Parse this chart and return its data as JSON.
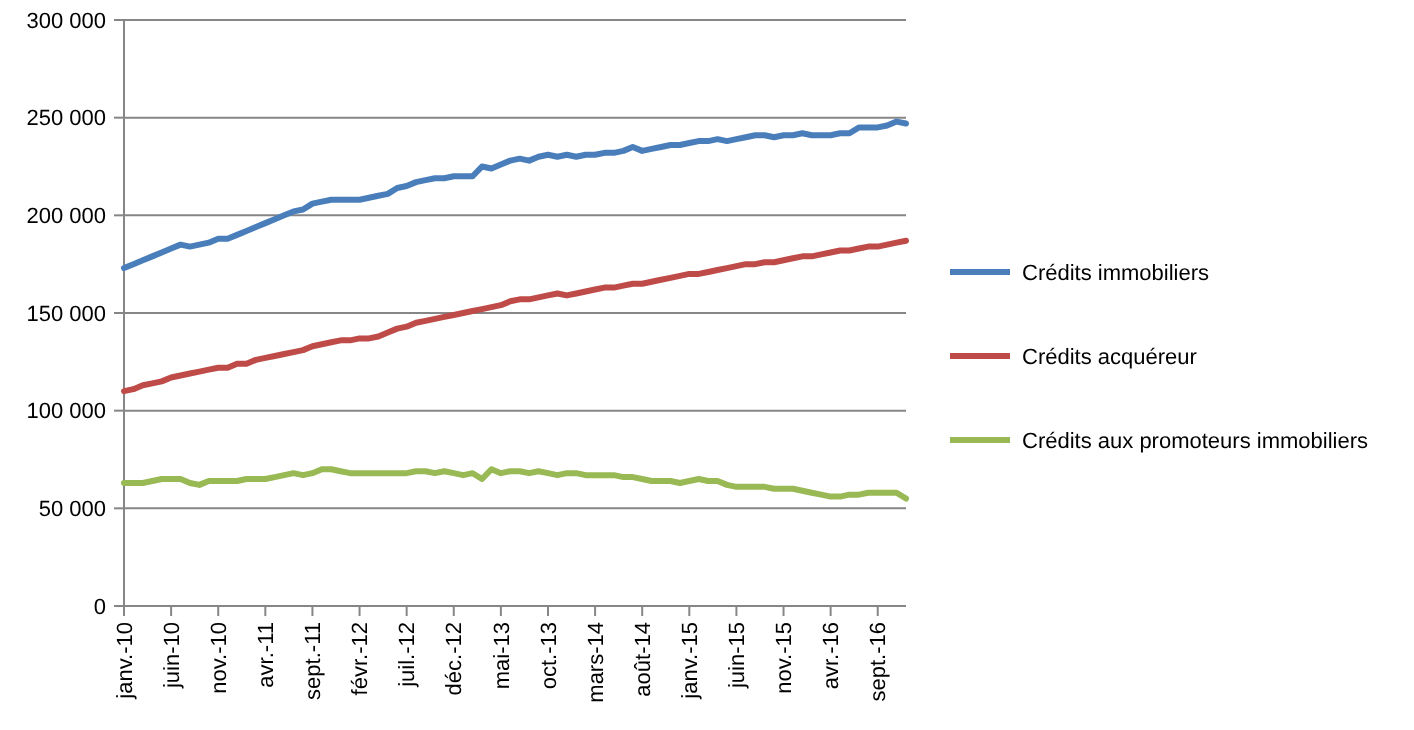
{
  "chart_data": {
    "type": "line",
    "categories": [
      "janv.-10",
      null,
      null,
      null,
      null,
      "juin-10",
      null,
      null,
      null,
      null,
      "nov.-10",
      null,
      null,
      null,
      null,
      "avr.-11",
      null,
      null,
      null,
      null,
      "sept.-11",
      null,
      null,
      null,
      null,
      "févr.-12",
      null,
      null,
      null,
      null,
      "juil.-12",
      null,
      null,
      null,
      null,
      "déc.-12",
      null,
      null,
      null,
      null,
      "mai-13",
      null,
      null,
      null,
      null,
      "oct.-13",
      null,
      null,
      null,
      null,
      "mars-14",
      null,
      null,
      null,
      null,
      "août-14",
      null,
      null,
      null,
      null,
      "janv.-15",
      null,
      null,
      null,
      null,
      "juin-15",
      null,
      null,
      null,
      null,
      "nov.-15",
      null,
      null,
      null,
      null,
      "avr.-16",
      null,
      null,
      null,
      null,
      "sept.-16",
      null,
      null,
      null
    ],
    "series": [
      {
        "name": "Crédits immobiliers",
        "color": "#4a7ebb",
        "values": [
          173000,
          175000,
          177000,
          179000,
          181000,
          183000,
          185000,
          184000,
          185000,
          186000,
          188000,
          188000,
          190000,
          192000,
          194000,
          196000,
          198000,
          200000,
          202000,
          203000,
          206000,
          207000,
          208000,
          208000,
          208000,
          208000,
          209000,
          210000,
          211000,
          214000,
          215000,
          217000,
          218000,
          219000,
          219000,
          220000,
          220000,
          220000,
          225000,
          224000,
          226000,
          228000,
          229000,
          228000,
          230000,
          231000,
          230000,
          231000,
          230000,
          231000,
          231000,
          232000,
          232000,
          233000,
          235000,
          233000,
          234000,
          235000,
          236000,
          236000,
          237000,
          238000,
          238000,
          239000,
          238000,
          239000,
          240000,
          241000,
          241000,
          240000,
          241000,
          241000,
          242000,
          241000,
          241000,
          241000,
          242000,
          242000,
          245000,
          245000,
          245000,
          246000,
          248000,
          247000
        ]
      },
      {
        "name": "Crédits acquéreur",
        "color": "#be4b48",
        "values": [
          110000,
          111000,
          113000,
          114000,
          115000,
          117000,
          118000,
          119000,
          120000,
          121000,
          122000,
          122000,
          124000,
          124000,
          126000,
          127000,
          128000,
          129000,
          130000,
          131000,
          133000,
          134000,
          135000,
          136000,
          136000,
          137000,
          137000,
          138000,
          140000,
          142000,
          143000,
          145000,
          146000,
          147000,
          148000,
          149000,
          150000,
          151000,
          152000,
          153000,
          154000,
          156000,
          157000,
          157000,
          158000,
          159000,
          160000,
          159000,
          160000,
          161000,
          162000,
          163000,
          163000,
          164000,
          165000,
          165000,
          166000,
          167000,
          168000,
          169000,
          170000,
          170000,
          171000,
          172000,
          173000,
          174000,
          175000,
          175000,
          176000,
          176000,
          177000,
          178000,
          179000,
          179000,
          180000,
          181000,
          182000,
          182000,
          183000,
          184000,
          184000,
          185000,
          186000,
          187000
        ]
      },
      {
        "name": "Crédits aux promoteurs immobiliers",
        "color": "#98b954",
        "values": [
          63000,
          63000,
          63000,
          64000,
          65000,
          65000,
          65000,
          63000,
          62000,
          64000,
          64000,
          64000,
          64000,
          65000,
          65000,
          65000,
          66000,
          67000,
          68000,
          67000,
          68000,
          70000,
          70000,
          69000,
          68000,
          68000,
          68000,
          68000,
          68000,
          68000,
          68000,
          69000,
          69000,
          68000,
          69000,
          68000,
          67000,
          68000,
          65000,
          70000,
          68000,
          69000,
          69000,
          68000,
          69000,
          68000,
          67000,
          68000,
          68000,
          67000,
          67000,
          67000,
          67000,
          66000,
          66000,
          65000,
          64000,
          64000,
          64000,
          63000,
          64000,
          65000,
          64000,
          64000,
          62000,
          61000,
          61000,
          61000,
          61000,
          60000,
          60000,
          60000,
          59000,
          58000,
          57000,
          56000,
          56000,
          57000,
          57000,
          58000,
          58000,
          58000,
          58000,
          55000
        ]
      }
    ],
    "ylim": [
      0,
      300000
    ],
    "yticks": [
      0,
      {
        "value": 50000,
        "label": "50 000"
      },
      {
        "value": 100000,
        "label": "100 000"
      },
      {
        "value": 150000,
        "label": "150 000"
      },
      {
        "value": 200000,
        "label": "200 000"
      },
      {
        "value": 250000,
        "label": "250 000"
      },
      {
        "value": 300000,
        "label": "300 000"
      }
    ],
    "grid": "y",
    "legend": "right",
    "marker": "none",
    "line_style": "solid"
  }
}
